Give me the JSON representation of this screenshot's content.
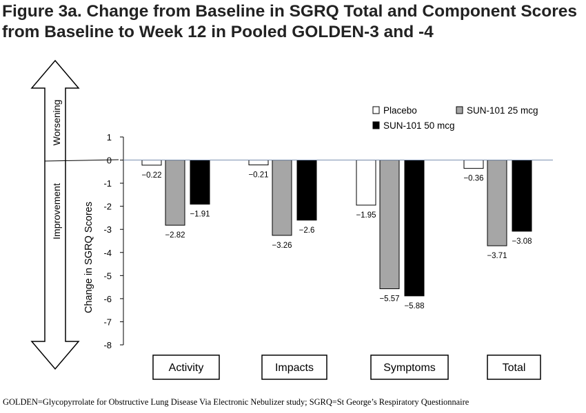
{
  "title": "Figure 3a. Change from Baseline in SGRQ Total and Component Scores from Baseline to Week 12 in Pooled GOLDEN-3 and -4",
  "footnote": "GOLDEN=Glycopyrrolate for Obstructive Lung Disease Via Electronic Nebulizer study; SGRQ=St George’s Respiratory Questionnaire",
  "arrow_labels": {
    "up": "Worsening",
    "down": "Improvement"
  },
  "chart_data": {
    "type": "bar",
    "ylabel": "Change in SGRQ Scores",
    "ylim": [
      -8,
      1
    ],
    "yticks": [
      1,
      0,
      -1,
      -2,
      -3,
      -4,
      -5,
      -6,
      -7,
      -8
    ],
    "ytick_labels": [
      "1",
      "0",
      "-1",
      "-2",
      "-3",
      "-4",
      "-5",
      "-6",
      "-7",
      "-8"
    ],
    "categories": [
      "Activity",
      "Impacts",
      "Symptoms",
      "Total"
    ],
    "legend_position": "top-right",
    "series": [
      {
        "name": "Placebo",
        "color": "#ffffff",
        "values": [
          -0.22,
          -0.21,
          -1.95,
          -0.36
        ],
        "labels": [
          "−0.22",
          "−0.21",
          "−1.95",
          "−0.36"
        ]
      },
      {
        "name": "SUN-101 25 mcg",
        "color": "#a6a6a6",
        "values": [
          -2.82,
          -3.26,
          -5.57,
          -3.71
        ],
        "labels": [
          "−2.82",
          "−3.26",
          "−5.57",
          "−3.71"
        ]
      },
      {
        "name": "SUN-101 50 mcg",
        "color": "#000000",
        "values": [
          -1.91,
          -2.6,
          -5.88,
          -3.08
        ],
        "labels": [
          "−1.91",
          "−2.6",
          "−5.88",
          "−3.08"
        ]
      }
    ]
  }
}
